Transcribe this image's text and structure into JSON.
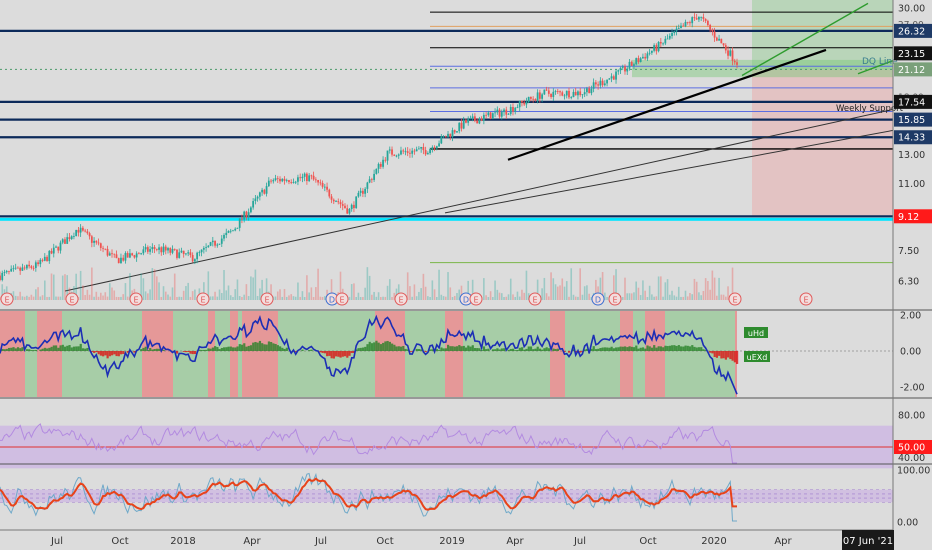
{
  "colors": {
    "background": "#dcdcdc",
    "candle_up": "#26a69a",
    "candle_down": "#ef5350",
    "navy_level": "#0c2a5a",
    "black_line": "#000000",
    "blue_fib": "#5b6ee1",
    "orange_fib": "#e0a060",
    "cyan_level": "#00e5ff",
    "red_label": "#ff1a1a",
    "dark_label": "#1e3a66",
    "green_zone": "rgba(120,200,120,0.35)",
    "red_zone": "rgba(240,150,150,0.35)",
    "trend_green": "#2e9c2e",
    "osc_line": "#1c2eb5",
    "rsi_line": "#b38be0",
    "stoch_k": "#e8431a",
    "stoch_d": "#6fa9c9"
  },
  "price_axis": {
    "ticks": [
      "30.00",
      "13.00",
      "11.00",
      "7.50",
      "6.30"
    ],
    "labels": [
      {
        "text": "26.32",
        "style": "navy"
      },
      {
        "text": "23.15",
        "style": "black"
      },
      {
        "text": "21.12",
        "style": "gray"
      },
      {
        "text": "17.54",
        "style": "black"
      },
      {
        "text": "15.85",
        "style": "navy"
      },
      {
        "text": "14.33",
        "style": "navy"
      },
      {
        "text": "9.12",
        "style": "red"
      }
    ],
    "hidden_label_fragments": [
      "27.00",
      "18.00"
    ]
  },
  "annotations": {
    "dq_line": "DQ Line",
    "weekly_support": "Weekly Support"
  },
  "earnings_markers": [
    "E",
    "E",
    "E",
    "E",
    "E",
    "D",
    "E",
    "E",
    "D",
    "E",
    "E",
    "D",
    "E",
    "E"
  ],
  "oscillator": {
    "ticks": [
      "2.00",
      "0.00",
      "-2.00"
    ],
    "legend_up": "uHd",
    "legend_down": "uEXd"
  },
  "rsi": {
    "ticks": [
      "80.00",
      "40.00"
    ],
    "label": "50.00"
  },
  "stoch": {
    "ticks": [
      "100.00",
      "0.00"
    ]
  },
  "time_axis": {
    "labels": [
      "Jul",
      "Oct",
      "2018",
      "Apr",
      "Jul",
      "Oct",
      "2019",
      "Apr",
      "Jul",
      "Oct",
      "2020",
      "Apr",
      "Jul"
    ],
    "current_date": "07 Jun '21"
  },
  "chart_data": {
    "type": "candlestick",
    "log_scale": true,
    "x": [
      "2017-05",
      "2017-07",
      "2017-10",
      "2017-12",
      "2018-03",
      "2018-05",
      "2018-07",
      "2018-09",
      "2018-10",
      "2018-12",
      "2019-02",
      "2019-03",
      "2019-05",
      "2019-06",
      "2019-08",
      "2019-09",
      "2019-11",
      "2019-12",
      "2020-01",
      "2020-02"
    ],
    "close": [
      6.5,
      6.9,
      8.5,
      7.1,
      7.6,
      7.2,
      8.4,
      11.2,
      11.4,
      9.4,
      13.1,
      13.3,
      15.6,
      16.6,
      18.4,
      18.5,
      20.8,
      24.2,
      28.8,
      22.0
    ],
    "horizontal_levels": [
      26.32,
      23.15,
      21.12,
      17.54,
      15.85,
      14.33,
      9.12
    ],
    "y_ticks": [
      30.0,
      13.0,
      11.0,
      7.5,
      6.3
    ],
    "panels": [
      "price",
      "volume",
      "oscillator",
      "rsi",
      "stochastic"
    ]
  }
}
